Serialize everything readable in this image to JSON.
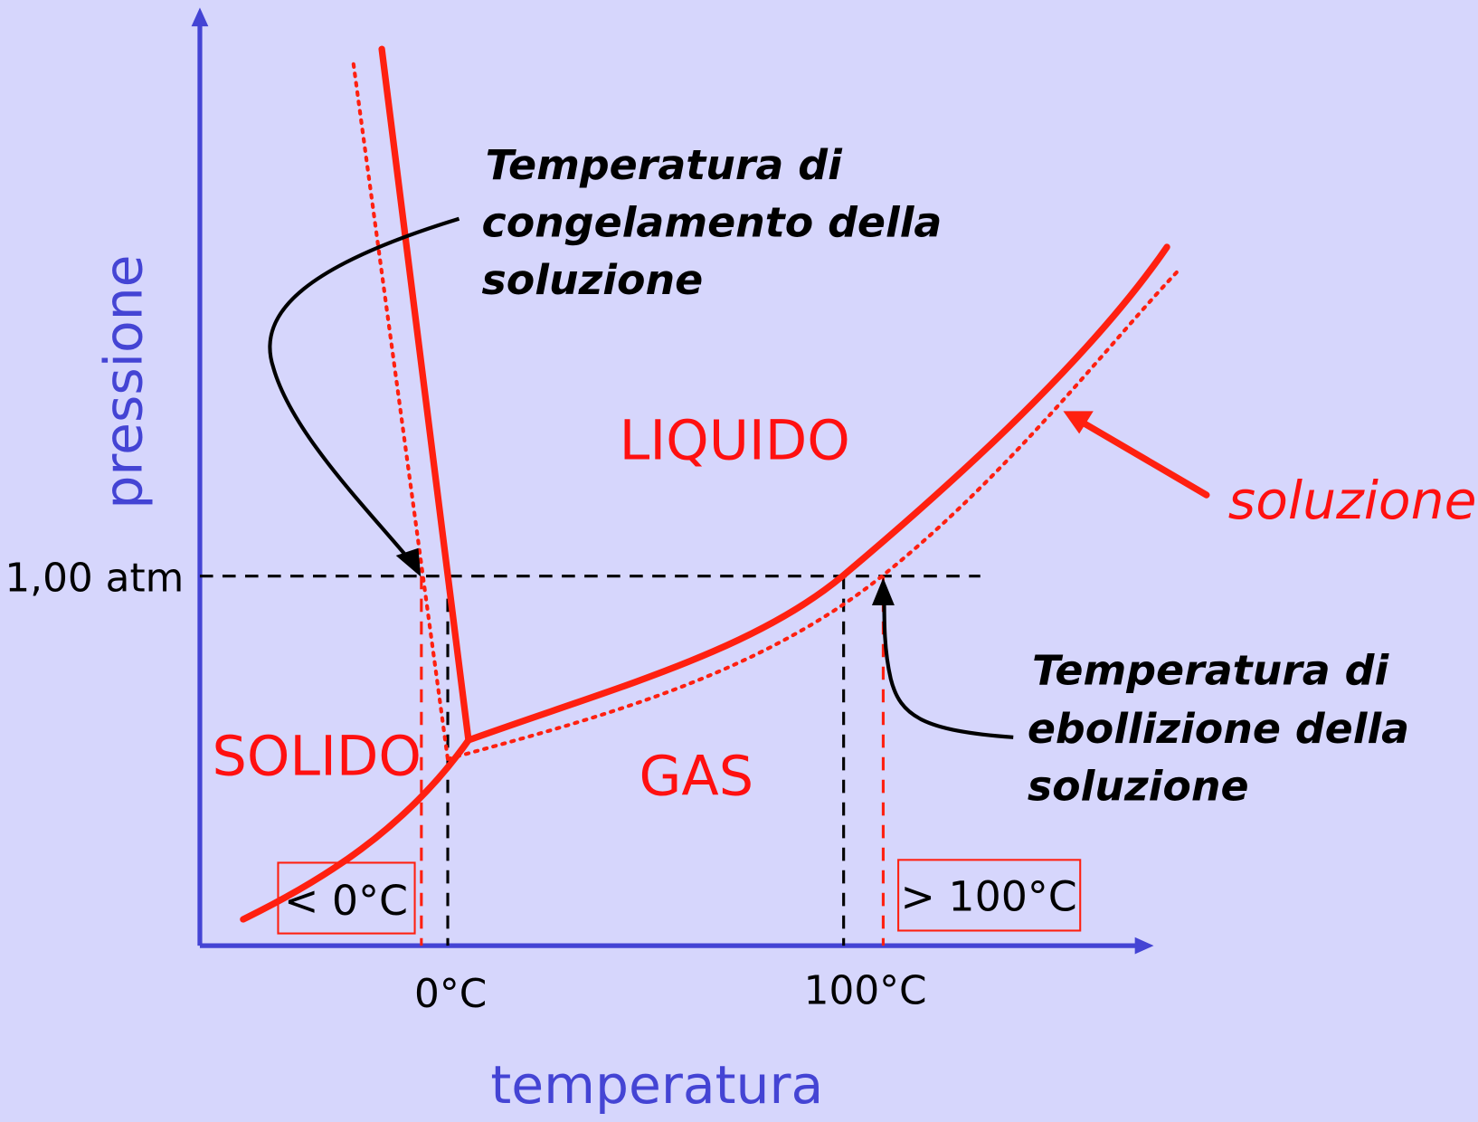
{
  "axes": {
    "y_label": "pressione",
    "x_label": "temperatura",
    "pressure_label": "1,00 atm",
    "temp_ticks": [
      "0°C",
      "100°C"
    ]
  },
  "regions": {
    "liquid": "LIQUIDO",
    "solid": "SOLIDO",
    "gas": "GAS"
  },
  "annotations": {
    "freezing": [
      "Temperatura di",
      "congelamento della",
      "soluzione"
    ],
    "boiling": [
      "Temperatura di",
      "ebollizione della",
      "soluzione"
    ],
    "solution": "soluzione"
  },
  "boxes": {
    "below_zero": "< 0°C",
    "above_hundred": "> 100°C"
  }
}
